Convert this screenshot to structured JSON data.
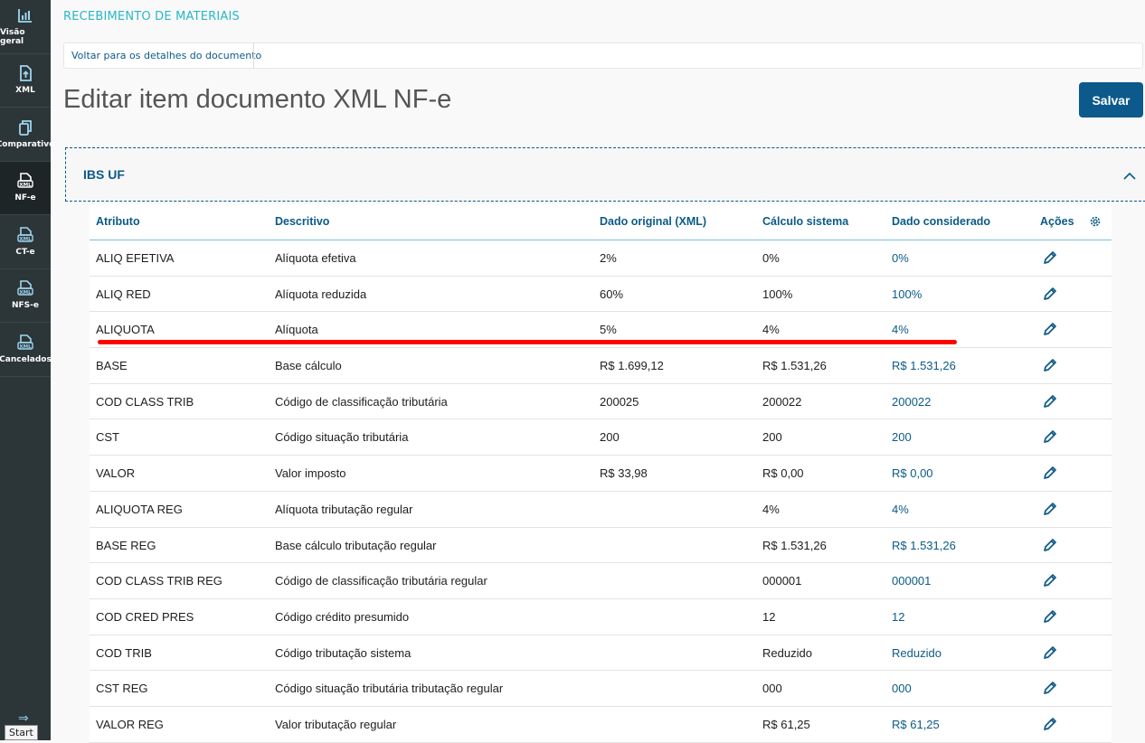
{
  "sidebar": {
    "items": [
      {
        "label": "Visão geral",
        "icon": "chart-bar-icon"
      },
      {
        "label": "XML",
        "icon": "file-upload-icon"
      },
      {
        "label": "Comparativo",
        "icon": "copy-icon"
      },
      {
        "label": "NF-e",
        "icon": "xml-file-icon",
        "active": true
      },
      {
        "label": "CT-e",
        "icon": "xml-file-icon"
      },
      {
        "label": "NFS-e",
        "icon": "xml-file-icon"
      },
      {
        "label": "Cancelados",
        "icon": "xml-file-icon"
      }
    ],
    "start_tooltip": "Start"
  },
  "header": {
    "app_title": "RECEBIMENTO DE MATERIAIS",
    "breadcrumb": "Voltar para os detalhes do documento",
    "page_title": "Editar item documento XML NF-e",
    "save_label": "Salvar"
  },
  "panel": {
    "title": "IBS UF"
  },
  "table": {
    "columns": [
      "Atributo",
      "Descritivo",
      "Dado original (XML)",
      "Cálculo sistema",
      "Dado considerado",
      "Ações"
    ],
    "rows": [
      [
        "ALIQ EFETIVA",
        "Alíquota efetiva",
        "2%",
        "0%",
        "0%"
      ],
      [
        "ALIQ RED",
        "Alíquota reduzida",
        "60%",
        "100%",
        "100%"
      ],
      [
        "ALIQUOTA",
        "Alíquota",
        "5%",
        "4%",
        "4%"
      ],
      [
        "BASE",
        "Base cálculo",
        "R$ 1.699,12",
        "R$ 1.531,26",
        "R$ 1.531,26"
      ],
      [
        "COD CLASS TRIB",
        "Código de classificação tributária",
        "200025",
        "200022",
        "200022"
      ],
      [
        "CST",
        "Código situação tributária",
        "200",
        "200",
        "200"
      ],
      [
        "VALOR",
        "Valor imposto",
        "R$ 33,98",
        "R$ 0,00",
        "R$ 0,00"
      ],
      [
        "ALIQUOTA REG",
        "Alíquota tributação regular",
        "",
        "4%",
        "4%"
      ],
      [
        "BASE REG",
        "Base cálculo tributação regular",
        "",
        "R$ 1.531,26",
        "R$ 1.531,26"
      ],
      [
        "COD CLASS TRIB REG",
        "Código de classificação tributária regular",
        "",
        "000001",
        "000001"
      ],
      [
        "COD CRED PRES",
        "Código crédito presumido",
        "",
        "12",
        "12"
      ],
      [
        "COD TRIB",
        "Código tributação sistema",
        "",
        "Reduzido",
        "Reduzido"
      ],
      [
        "CST REG",
        "Código situação tributária tributação regular",
        "",
        "000",
        "000"
      ],
      [
        "VALOR REG",
        "Valor tributação regular",
        "",
        "R$ 61,25",
        "R$ 61,25"
      ]
    ]
  },
  "colors": {
    "accent": "#0c5a87",
    "highlight": "#ff0000",
    "sidebar": "#2c3639"
  }
}
